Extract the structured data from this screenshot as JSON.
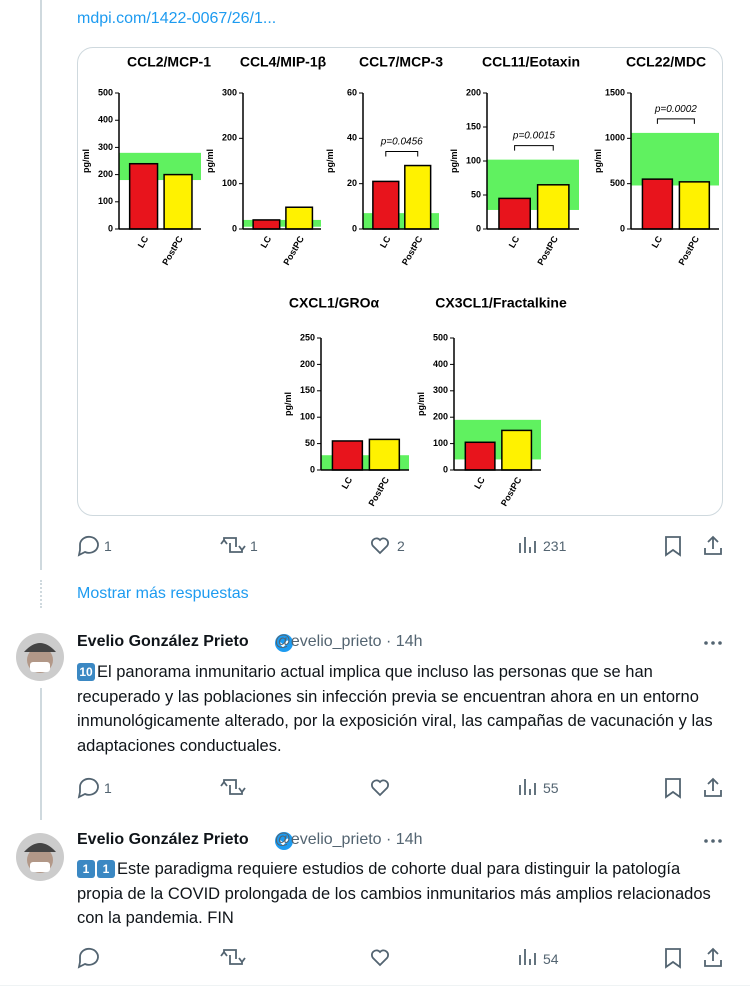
{
  "tweet_top": {
    "link": "mdpi.com/1422-0067/26/1...",
    "replies": "1",
    "retweets": "1",
    "likes": "2",
    "views": "231"
  },
  "chart_data": [
    {
      "type": "bar",
      "title": "CCL2/MCP-1",
      "ylabel": "pg/ml",
      "categories": [
        "LC",
        "PostPC"
      ],
      "values": [
        240,
        200
      ],
      "colors": [
        "#e8141c",
        "#fff200"
      ],
      "ylim": [
        0,
        500
      ],
      "yticks": [
        0,
        100,
        200,
        300,
        400,
        500
      ],
      "reference_band": [
        180,
        280
      ],
      "band_color": "#44ee44"
    },
    {
      "type": "bar",
      "title": "CCL4/MIP-1β",
      "ylabel": "pg/ml",
      "categories": [
        "LC",
        "PostPC"
      ],
      "values": [
        20,
        48
      ],
      "colors": [
        "#e8141c",
        "#fff200"
      ],
      "ylim": [
        0,
        300
      ],
      "yticks": [
        0,
        100,
        200,
        300
      ],
      "reference_band": [
        5,
        20
      ],
      "band_color": "#44ee44"
    },
    {
      "type": "bar",
      "title": "CCL7/MCP-3",
      "ylabel": "pg/ml",
      "categories": [
        "LC",
        "PostPC"
      ],
      "values": [
        21,
        28
      ],
      "colors": [
        "#e8141c",
        "#fff200"
      ],
      "ylim": [
        0,
        60
      ],
      "yticks": [
        0,
        20,
        40,
        60
      ],
      "reference_band": [
        0,
        7
      ],
      "band_color": "#44ee44",
      "annotation": "p=0.0456"
    },
    {
      "type": "bar",
      "title": "CCL11/Eotaxin",
      "ylabel": "pg/ml",
      "categories": [
        "LC",
        "PostPC"
      ],
      "values": [
        45,
        65
      ],
      "colors": [
        "#e8141c",
        "#fff200"
      ],
      "ylim": [
        0,
        200
      ],
      "yticks": [
        0,
        50,
        100,
        150,
        200
      ],
      "reference_band": [
        28,
        102
      ],
      "band_color": "#44ee44",
      "annotation": "p=0.0015"
    },
    {
      "type": "bar",
      "title": "CCL22/MDC",
      "ylabel": "pg/ml",
      "categories": [
        "LC",
        "PostPC"
      ],
      "values": [
        550,
        520
      ],
      "colors": [
        "#e8141c",
        "#fff200"
      ],
      "ylim": [
        0,
        1500
      ],
      "yticks": [
        0,
        500,
        1000,
        1500
      ],
      "reference_band": [
        480,
        1060
      ],
      "band_color": "#44ee44",
      "annotation": "p=0.0002"
    },
    {
      "type": "bar",
      "title": "CXCL1/GROα",
      "ylabel": "pg/ml",
      "categories": [
        "LC",
        "PostPC"
      ],
      "values": [
        55,
        58
      ],
      "colors": [
        "#e8141c",
        "#fff200"
      ],
      "ylim": [
        0,
        250
      ],
      "yticks": [
        0,
        50,
        100,
        150,
        200,
        250
      ],
      "reference_band": [
        0,
        28
      ],
      "band_color": "#44ee44"
    },
    {
      "type": "bar",
      "title": "CX3CL1/Fractalkine",
      "ylabel": "pg/ml",
      "categories": [
        "LC",
        "PostPC"
      ],
      "values": [
        105,
        150
      ],
      "colors": [
        "#e8141c",
        "#fff200"
      ],
      "ylim": [
        0,
        500
      ],
      "yticks": [
        0,
        100,
        200,
        300,
        400,
        500
      ],
      "reference_band": [
        40,
        190
      ],
      "band_color": "#44ee44"
    }
  ],
  "more_replies": "Mostrar más respuestas",
  "tweets": [
    {
      "name": "Evelio González Prieto",
      "handle": "@evelio_prieto",
      "time": "· 14h",
      "badge": [
        "10"
      ],
      "text": "El panorama inmunitario actual implica que incluso las personas que se han recuperado y las poblaciones sin infección previa se encuentran ahora en un entorno inmunológicamente alterado, por la exposición viral, las campañas de vacunación y las adaptaciones conductuales.",
      "replies": "1",
      "views": "55"
    },
    {
      "name": "Evelio González Prieto",
      "handle": "@evelio_prieto",
      "time": "· 14h",
      "badge": [
        "1",
        "1"
      ],
      "text": "Este paradigma requiere estudios de cohorte dual para distinguir la patología propia de la COVID prolongada de los cambios inmunitarios más amplios relacionados con la pandemia. FIN",
      "views": "54"
    }
  ]
}
